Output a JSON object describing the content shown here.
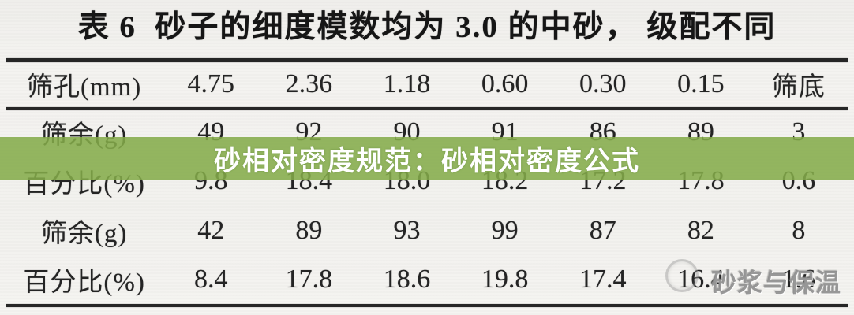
{
  "title": "表 6  砂子的细度模数均为 3.0 的中砂， 级配不同",
  "table": {
    "header": [
      "筛孔(mm)",
      "4.75",
      "2.36",
      "1.18",
      "0.60",
      "0.30",
      "0.15",
      "筛底"
    ],
    "rows": [
      {
        "label": "筛余(g)",
        "values": [
          "49",
          "92",
          "90",
          "91",
          "86",
          "89",
          "3"
        ]
      },
      {
        "label": "百分比(%)",
        "values": [
          "9.8",
          "18.4",
          "18.0",
          "18.2",
          "17.2",
          "17.8",
          "0.6"
        ]
      },
      {
        "label": "筛余(g)",
        "values": [
          "42",
          "89",
          "93",
          "99",
          "87",
          "82",
          "8"
        ]
      },
      {
        "label": "百分比(%)",
        "values": [
          "8.4",
          "17.8",
          "18.6",
          "19.8",
          "17.4",
          "16.4",
          "1.6"
        ]
      }
    ]
  },
  "overlay_banner": {
    "text": "砂相对密度规范：砂相对密度公式",
    "bg_color": "#84ab49",
    "text_color": "#ffffff"
  },
  "watermark": {
    "text": "砂浆与保温",
    "color": "#8f8f8f"
  },
  "colors": {
    "page_bg": "#f3f2ef",
    "rule": "#262626",
    "text": "#242424"
  }
}
